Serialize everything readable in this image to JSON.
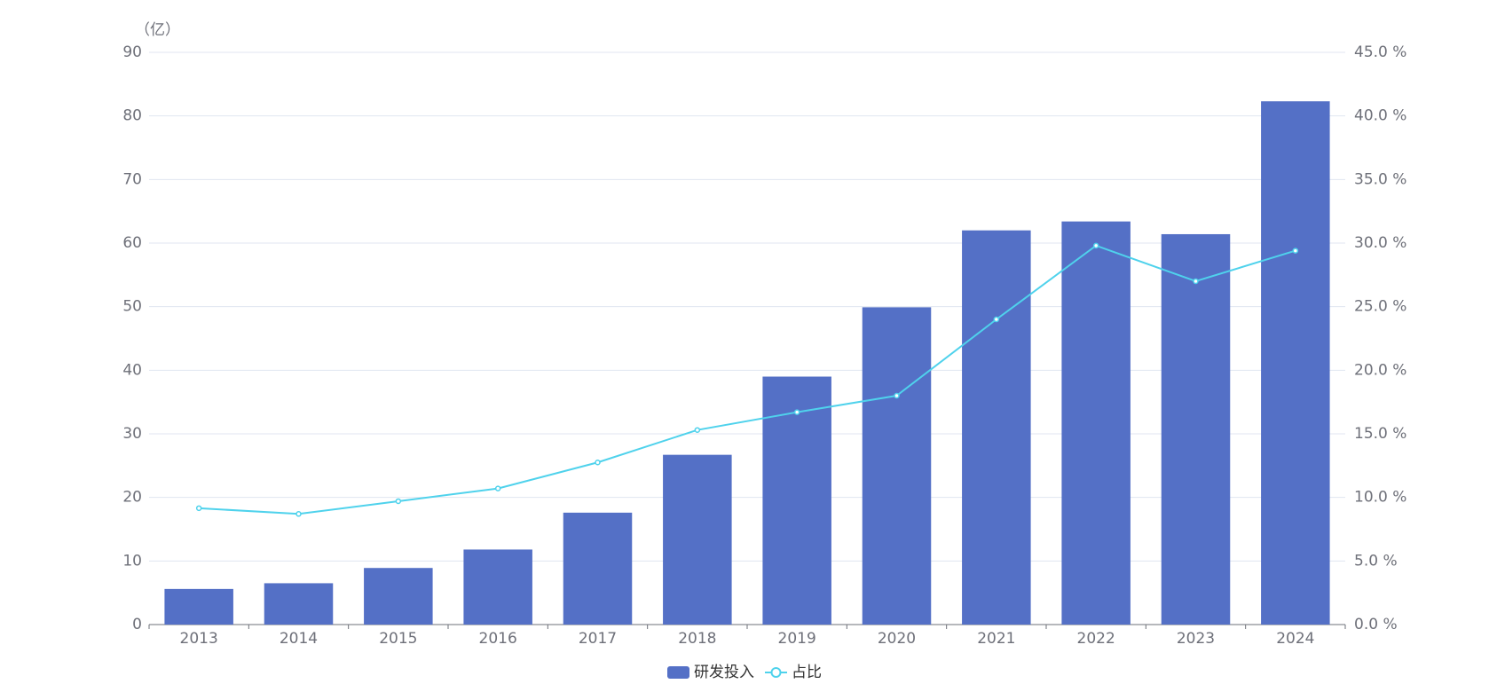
{
  "chart_data": {
    "type": "bar-line",
    "y_label": "（亿）",
    "categories": [
      "2013",
      "2014",
      "2015",
      "2016",
      "2017",
      "2018",
      "2019",
      "2020",
      "2021",
      "2022",
      "2023",
      "2024"
    ],
    "series": [
      {
        "name": "研发投入",
        "type": "bar",
        "color": "#5470c6",
        "values": [
          5.6,
          6.5,
          8.9,
          11.8,
          17.6,
          26.7,
          39.0,
          49.9,
          62.0,
          63.4,
          61.4,
          82.3
        ]
      },
      {
        "name": "占比",
        "type": "line",
        "axis": "y2",
        "color": "#4fd2ec",
        "values": [
          9.15,
          8.7,
          9.7,
          10.7,
          12.75,
          15.3,
          16.7,
          18.0,
          24.0,
          29.8,
          27.0,
          29.4
        ]
      }
    ],
    "ylim": [
      0,
      90
    ],
    "yticks": [
      0,
      10,
      20,
      30,
      40,
      50,
      60,
      70,
      80,
      90
    ],
    "y2lim": [
      0,
      45
    ],
    "y2ticks": [
      {
        "value": 0,
        "label": "0.0 %"
      },
      {
        "value": 5,
        "label": "5.0 %"
      },
      {
        "value": 10,
        "label": "10.0 %"
      },
      {
        "value": 15,
        "label": "15.0 %"
      },
      {
        "value": 20,
        "label": "20.0 %"
      },
      {
        "value": 25,
        "label": "25.0 %"
      },
      {
        "value": 30,
        "label": "30.0 %"
      },
      {
        "value": 35,
        "label": "35.0 %"
      },
      {
        "value": 40,
        "label": "40.0 %"
      },
      {
        "value": 45,
        "label": "45.0 %"
      }
    ],
    "grid": true,
    "legend": "bottom"
  }
}
